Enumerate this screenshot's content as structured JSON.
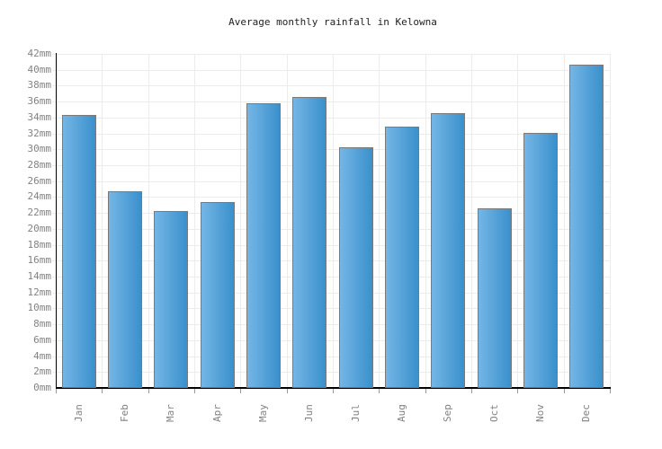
{
  "title": "Average monthly rainfall in Kelowna",
  "chart_data": {
    "type": "bar",
    "title": "Average monthly rainfall in Kelowna",
    "categories": [
      "Jan",
      "Feb",
      "Mar",
      "Apr",
      "May",
      "Jun",
      "Jul",
      "Aug",
      "Sep",
      "Oct",
      "Nov",
      "Dec"
    ],
    "values": [
      34.3,
      24.7,
      22.2,
      23.4,
      35.8,
      36.6,
      30.3,
      32.8,
      34.5,
      22.6,
      32.1,
      40.6
    ],
    "xlabel": "",
    "ylabel": "",
    "ylim": [
      0,
      42
    ],
    "ytick_step": 2,
    "ytick_suffix": "mm",
    "grid": true,
    "legend_position": "none"
  },
  "colors": {
    "bar_gradient_left": "#74b6e6",
    "bar_gradient_right": "#3a90cc",
    "bar_border": "#7a7a7a",
    "gridline": "#ececec",
    "axis_line": "#000000",
    "tick_label": "#828282",
    "tick_stub": "#999999",
    "title_text": "#222222",
    "background": "#ffffff"
  }
}
